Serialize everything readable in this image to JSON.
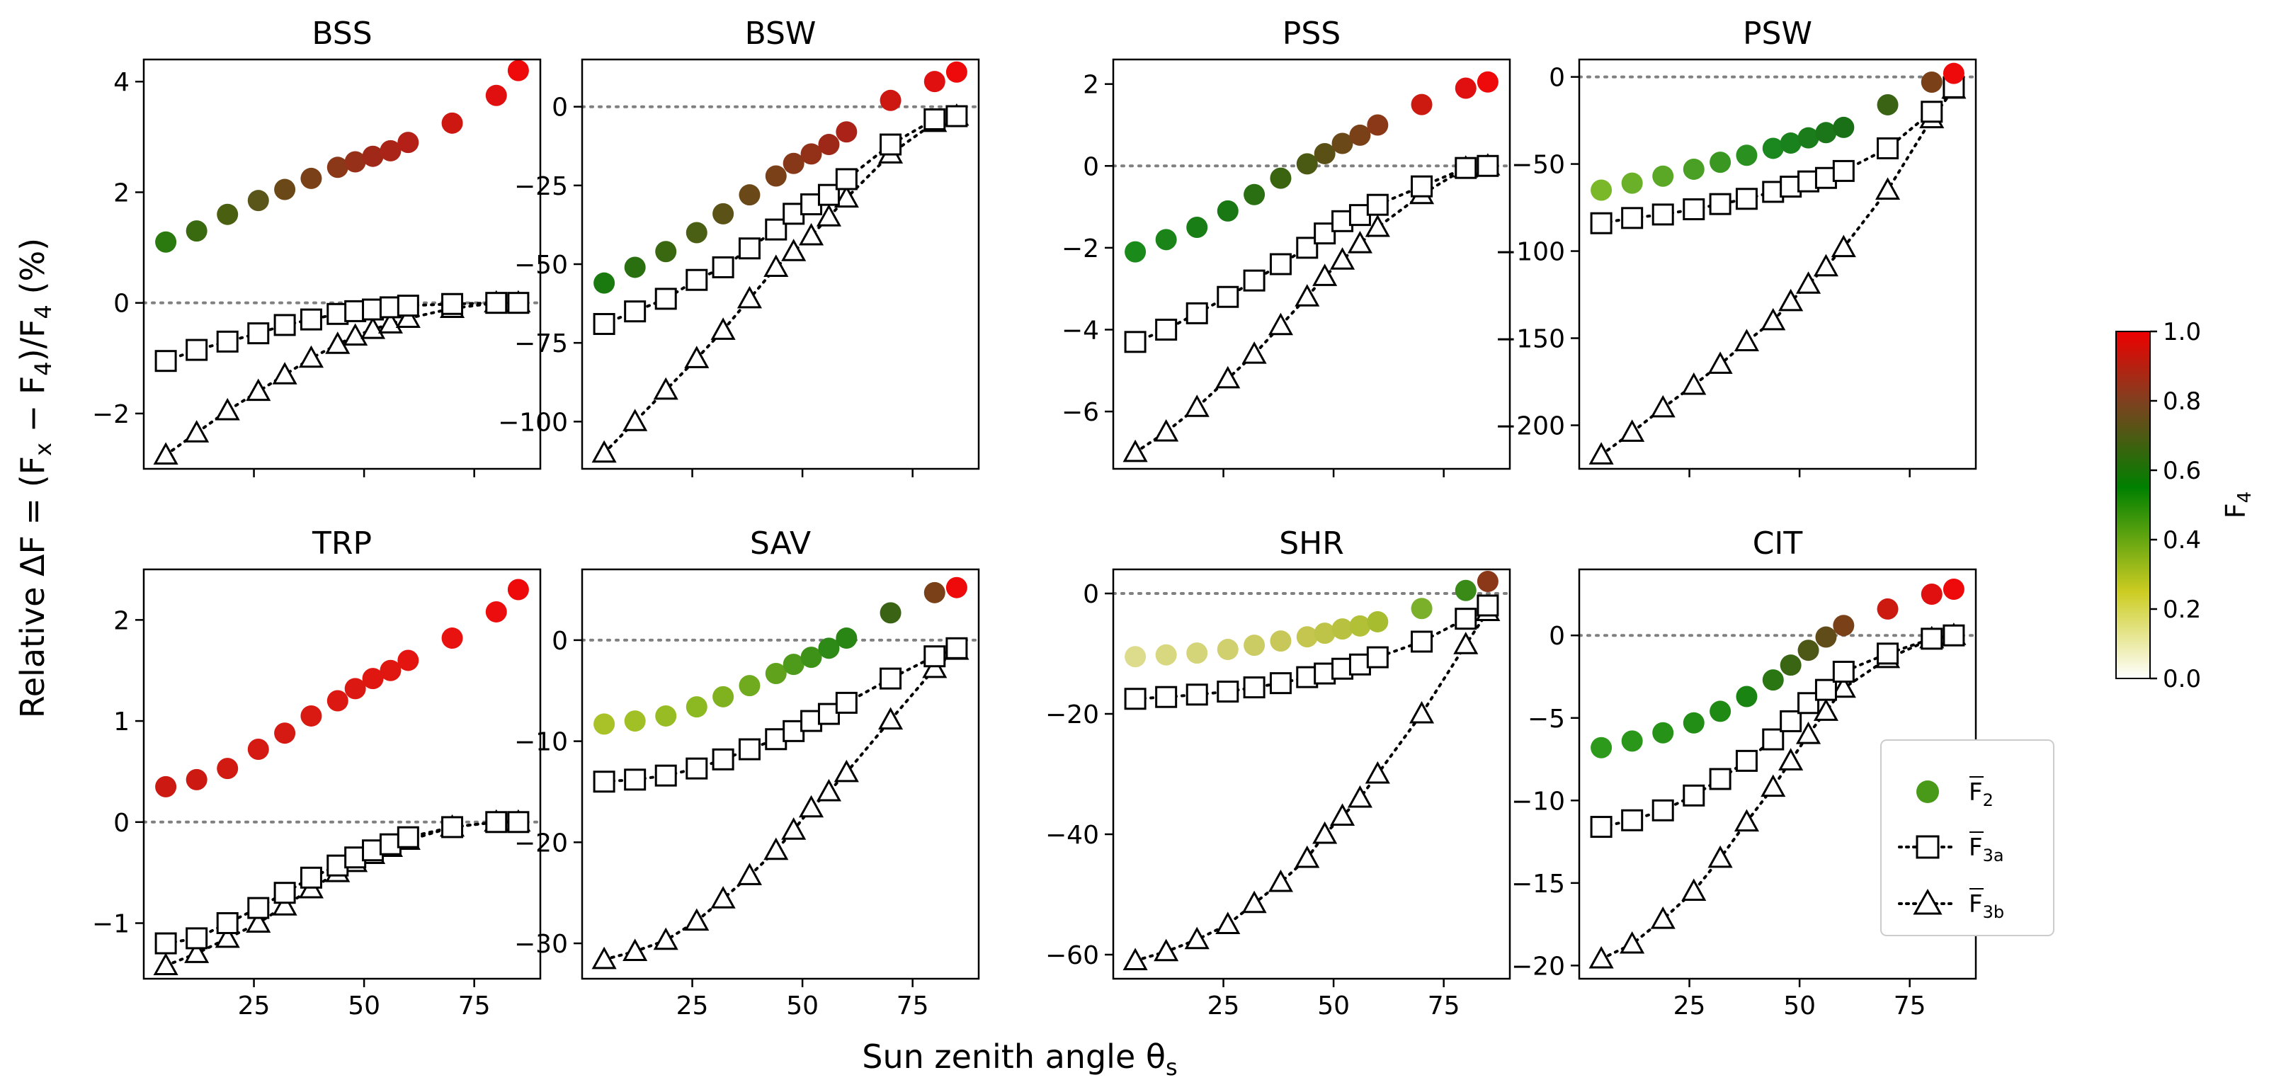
{
  "figure": {
    "xlabel": "Sun zenith angle θ",
    "xlabel_sub": "s",
    "ylabel_prefix": "Relative ΔF = (F",
    "ylabel_sub_x": "x",
    "ylabel_mid": " − F",
    "ylabel_sub_4": "4",
    "ylabel_mid2": ")/F",
    "ylabel_sub_4b": "4",
    "ylabel_suffix": " (%)",
    "colorbar": {
      "label": "F",
      "label_sub": "4",
      "range": [
        0,
        1
      ],
      "ticks": [
        "0.0",
        "0.2",
        "0.4",
        "0.6",
        "0.8",
        "1.0"
      ],
      "colors": [
        "#ffffff",
        "#cccc22",
        "#008000",
        "#804020",
        "#ee0000"
      ]
    },
    "legend": [
      {
        "label": "F",
        "sub": "2",
        "marker": "circle",
        "color": "#4a9a1a"
      },
      {
        "label": "F",
        "sub": "3a",
        "marker": "square",
        "color": "#000000"
      },
      {
        "label": "F",
        "sub": "3b",
        "marker": "triangle",
        "color": "#000000"
      }
    ]
  },
  "chart_data": [
    {
      "title": "BSS",
      "type": "scatter",
      "xlim": [
        0,
        90
      ],
      "ylim": [
        -3.0,
        4.4
      ],
      "xticks": [
        25,
        50,
        75
      ],
      "yticks": [
        -2,
        0,
        2,
        4
      ],
      "ytick_labels": [
        "−2",
        "0",
        "2",
        "4"
      ],
      "x": [
        5,
        12,
        19,
        26,
        32,
        38,
        44,
        48,
        52,
        56,
        60,
        70,
        80,
        85
      ],
      "series": [
        {
          "name": "F2",
          "values": [
            1.1,
            1.3,
            1.6,
            1.85,
            2.05,
            2.25,
            2.45,
            2.55,
            2.65,
            2.75,
            2.9,
            3.25,
            3.75,
            4.2
          ],
          "colors": [
            "#2a7a10",
            "#3a6a10",
            "#4a6010",
            "#5a5518",
            "#6a4818",
            "#7a4018",
            "#8a3818",
            "#963018",
            "#a02818",
            "#aa2418",
            "#b42018",
            "#cc1810",
            "#e01010",
            "#ee0a0a"
          ]
        },
        {
          "name": "F3a",
          "values": [
            -1.05,
            -0.85,
            -0.7,
            -0.55,
            -0.4,
            -0.3,
            -0.2,
            -0.15,
            -0.12,
            -0.08,
            -0.05,
            -0.02,
            0,
            0
          ]
        },
        {
          "name": "F3b",
          "values": [
            -2.75,
            -2.35,
            -1.95,
            -1.6,
            -1.3,
            -1.0,
            -0.75,
            -0.6,
            -0.48,
            -0.38,
            -0.28,
            -0.1,
            0,
            0
          ]
        }
      ]
    },
    {
      "title": "BSW",
      "type": "scatter",
      "xlim": [
        0,
        90
      ],
      "ylim": [
        -115,
        15
      ],
      "xticks": [
        25,
        50,
        75
      ],
      "yticks": [
        -100,
        -75,
        -50,
        -25,
        0
      ],
      "ytick_labels": [
        "−100",
        "−75",
        "−50",
        "−25",
        "0"
      ],
      "x": [
        5,
        12,
        19,
        26,
        32,
        38,
        44,
        48,
        52,
        56,
        60,
        70,
        80,
        85
      ],
      "series": [
        {
          "name": "F2",
          "values": [
            -56,
            -51,
            -46,
            -40,
            -34,
            -28,
            -22,
            -18,
            -15,
            -12,
            -8,
            2,
            8,
            11
          ],
          "colors": [
            "#1a7a10",
            "#2a7010",
            "#3a6810",
            "#4a5e14",
            "#5a5216",
            "#6a4818",
            "#7a4018",
            "#863818",
            "#923018",
            "#9e2818",
            "#aa2218",
            "#cc1810",
            "#e01010",
            "#ee0a0a"
          ]
        },
        {
          "name": "F3a",
          "values": [
            -69,
            -65,
            -61,
            -55,
            -51,
            -45,
            -39,
            -34,
            -31,
            -28,
            -23,
            -12,
            -4,
            -3
          ]
        },
        {
          "name": "F3b",
          "values": [
            -110,
            -100,
            -90,
            -80,
            -71,
            -61,
            -51,
            -46,
            -41,
            -35,
            -29,
            -15,
            -5,
            -3
          ]
        }
      ]
    },
    {
      "title": "PSS",
      "type": "scatter",
      "xlim": [
        0,
        90
      ],
      "ylim": [
        -7.4,
        2.6
      ],
      "xticks": [
        25,
        50,
        75
      ],
      "yticks": [
        -6,
        -4,
        -2,
        0,
        2
      ],
      "ytick_labels": [
        "−6",
        "−4",
        "−2",
        "0",
        "2"
      ],
      "x": [
        5,
        12,
        19,
        26,
        32,
        38,
        44,
        48,
        52,
        56,
        60,
        70,
        80,
        85
      ],
      "series": [
        {
          "name": "F2",
          "values": [
            -2.1,
            -1.8,
            -1.5,
            -1.1,
            -0.7,
            -0.3,
            0.05,
            0.3,
            0.55,
            0.75,
            1.0,
            1.5,
            1.9,
            2.05
          ],
          "colors": [
            "#1a8a1a",
            "#1a8418",
            "#1a7e16",
            "#1a7814",
            "#2a7012",
            "#3a6410",
            "#4a5a12",
            "#5a5016",
            "#6a4818",
            "#7a4018",
            "#8a3818",
            "#cc1a10",
            "#e01010",
            "#ee0a0a"
          ]
        },
        {
          "name": "F3a",
          "values": [
            -4.3,
            -4.0,
            -3.6,
            -3.2,
            -2.8,
            -2.4,
            -2.0,
            -1.65,
            -1.35,
            -1.2,
            -0.95,
            -0.5,
            -0.05,
            0
          ]
        },
        {
          "name": "F3b",
          "values": [
            -7.0,
            -6.5,
            -5.9,
            -5.2,
            -4.6,
            -3.9,
            -3.2,
            -2.7,
            -2.3,
            -1.9,
            -1.5,
            -0.7,
            -0.05,
            0
          ]
        }
      ]
    },
    {
      "title": "PSW",
      "type": "scatter",
      "xlim": [
        0,
        90
      ],
      "ylim": [
        -225,
        10
      ],
      "xticks": [
        25,
        50,
        75
      ],
      "yticks": [
        -200,
        -150,
        -100,
        -50,
        0
      ],
      "ytick_labels": [
        "−200",
        "−150",
        "−100",
        "−50",
        "0"
      ],
      "x": [
        5,
        12,
        19,
        26,
        32,
        38,
        44,
        48,
        52,
        56,
        60,
        70,
        80,
        85
      ],
      "series": [
        {
          "name": "F2",
          "values": [
            -65,
            -61,
            -57,
            -53,
            -49,
            -45,
            -41,
            -38,
            -35,
            -32,
            -29,
            -16,
            -3,
            2
          ],
          "colors": [
            "#7ab82a",
            "#6ab028",
            "#5aa826",
            "#4aa024",
            "#3a9822",
            "#2a9020",
            "#1a881e",
            "#1a821c",
            "#1a7c1a",
            "#1a7618",
            "#1a7016",
            "#3a6414",
            "#7a4018",
            "#ee0a0a"
          ]
        },
        {
          "name": "F3a",
          "values": [
            -84,
            -81,
            -79,
            -76,
            -73,
            -70,
            -66,
            -63,
            -60,
            -58,
            -54,
            -41,
            -20,
            -6
          ]
        },
        {
          "name": "F3b",
          "values": [
            -217,
            -204,
            -190,
            -177,
            -165,
            -152,
            -140,
            -129,
            -119,
            -109,
            -98,
            -65,
            -24,
            -7
          ]
        }
      ]
    },
    {
      "title": "TRP",
      "type": "scatter",
      "xlim": [
        0,
        90
      ],
      "ylim": [
        -1.55,
        2.5
      ],
      "xticks": [
        25,
        50,
        75
      ],
      "yticks": [
        -1,
        0,
        1,
        2
      ],
      "ytick_labels": [
        "−1",
        "0",
        "1",
        "2"
      ],
      "x": [
        5,
        12,
        19,
        26,
        32,
        38,
        44,
        48,
        52,
        56,
        60,
        70,
        80,
        85
      ],
      "series": [
        {
          "name": "F2",
          "values": [
            0.35,
            0.42,
            0.53,
            0.72,
            0.88,
            1.05,
            1.2,
            1.32,
            1.42,
            1.5,
            1.6,
            1.82,
            2.08,
            2.3
          ],
          "colors": [
            "#cc1a12",
            "#cc1a12",
            "#d01a12",
            "#d41a12",
            "#d41a12",
            "#d81a12",
            "#dc1812",
            "#dc1812",
            "#e01610",
            "#e01610",
            "#e41410",
            "#e81210",
            "#ec0e0e",
            "#ee0a0a"
          ]
        },
        {
          "name": "F3a",
          "values": [
            -1.2,
            -1.15,
            -1.0,
            -0.85,
            -0.7,
            -0.55,
            -0.43,
            -0.35,
            -0.28,
            -0.22,
            -0.15,
            -0.05,
            0,
            0
          ]
        },
        {
          "name": "F3b",
          "values": [
            -1.42,
            -1.3,
            -1.15,
            -1.0,
            -0.83,
            -0.66,
            -0.5,
            -0.4,
            -0.32,
            -0.25,
            -0.18,
            -0.05,
            0,
            0
          ]
        }
      ]
    },
    {
      "title": "SAV",
      "type": "scatter",
      "xlim": [
        0,
        90
      ],
      "ylim": [
        -33.5,
        7
      ],
      "xticks": [
        25,
        50,
        75
      ],
      "yticks": [
        -30,
        -20,
        -10,
        0
      ],
      "ytick_labels": [
        "−30",
        "−20",
        "−10",
        "0"
      ],
      "x": [
        5,
        12,
        19,
        26,
        32,
        38,
        44,
        48,
        52,
        56,
        60,
        70,
        80,
        85
      ],
      "series": [
        {
          "name": "F2",
          "values": [
            -8.3,
            -8.0,
            -7.5,
            -6.6,
            -5.6,
            -4.5,
            -3.3,
            -2.4,
            -1.7,
            -0.8,
            0.2,
            2.7,
            4.7,
            5.2
          ],
          "colors": [
            "#a8c228",
            "#a0c026",
            "#98bc24",
            "#8cb822",
            "#80b220",
            "#70aa1e",
            "#60a21c",
            "#4e9a1a",
            "#3e9218",
            "#2e8a16",
            "#2a8614",
            "#3a6414",
            "#7a4018",
            "#ee0a0a"
          ]
        },
        {
          "name": "F3a",
          "values": [
            -14,
            -13.8,
            -13.4,
            -12.7,
            -11.8,
            -10.8,
            -9.8,
            -9.0,
            -8.0,
            -7.3,
            -6.2,
            -3.8,
            -1.6,
            -0.8
          ]
        },
        {
          "name": "F3b",
          "values": [
            -31.6,
            -30.8,
            -29.7,
            -27.8,
            -25.6,
            -23.3,
            -20.8,
            -18.8,
            -16.6,
            -15.0,
            -13.1,
            -7.9,
            -2.8,
            -1.0
          ]
        }
      ]
    },
    {
      "title": "SHR",
      "type": "scatter",
      "xlim": [
        0,
        90
      ],
      "ylim": [
        -64,
        4
      ],
      "xticks": [
        25,
        50,
        75
      ],
      "yticks": [
        -60,
        -40,
        -20,
        0
      ],
      "ytick_labels": [
        "−60",
        "−40",
        "−20",
        "0"
      ],
      "x": [
        5,
        12,
        19,
        26,
        32,
        38,
        44,
        48,
        52,
        56,
        60,
        70,
        80,
        85
      ],
      "series": [
        {
          "name": "F2",
          "values": [
            -10.5,
            -10.2,
            -9.9,
            -9.3,
            -8.6,
            -7.9,
            -7.2,
            -6.6,
            -5.9,
            -5.4,
            -4.7,
            -2.5,
            0.5,
            2.0
          ],
          "colors": [
            "#dcdc8c",
            "#d8d880",
            "#d4d478",
            "#d0d06e",
            "#cccc64",
            "#c8c85a",
            "#c4c650",
            "#bec448",
            "#b8c240",
            "#b2c038",
            "#a8bc30",
            "#7ab02a",
            "#3a8a18",
            "#8a3818"
          ]
        },
        {
          "name": "F3a",
          "values": [
            -17.5,
            -17.2,
            -16.8,
            -16.3,
            -15.6,
            -14.9,
            -13.9,
            -13.3,
            -12.5,
            -11.8,
            -10.6,
            -8.0,
            -4.2,
            -2.0
          ]
        },
        {
          "name": "F3b",
          "values": [
            -61,
            -59.5,
            -57.5,
            -55,
            -51.5,
            -48,
            -44,
            -40,
            -37,
            -34,
            -30,
            -20,
            -8.5,
            -3.0
          ]
        }
      ]
    },
    {
      "title": "CIT",
      "type": "scatter",
      "xlim": [
        0,
        90
      ],
      "ylim": [
        -20.8,
        4
      ],
      "xticks": [
        25,
        50,
        75
      ],
      "yticks": [
        -20,
        -15,
        -10,
        -5,
        0
      ],
      "ytick_labels": [
        "−20",
        "−15",
        "−10",
        "−5",
        "0"
      ],
      "x": [
        5,
        12,
        19,
        26,
        32,
        38,
        44,
        48,
        52,
        56,
        60,
        70,
        80,
        85
      ],
      "series": [
        {
          "name": "F2",
          "values": [
            -6.8,
            -6.4,
            -5.9,
            -5.3,
            -4.6,
            -3.7,
            -2.7,
            -1.8,
            -0.9,
            -0.1,
            0.6,
            1.6,
            2.5,
            2.8
          ],
          "colors": [
            "#2e9a1c",
            "#2a961a",
            "#269218",
            "#228e16",
            "#1e8a14",
            "#1a8412",
            "#2a7612",
            "#3a6614",
            "#4e5816",
            "#604c18",
            "#7a4018",
            "#cc1a10",
            "#e01010",
            "#ee0a0a"
          ]
        },
        {
          "name": "F3a",
          "values": [
            -11.6,
            -11.2,
            -10.6,
            -9.7,
            -8.7,
            -7.6,
            -6.3,
            -5.2,
            -4.1,
            -3.3,
            -2.2,
            -1.1,
            -0.2,
            0
          ]
        },
        {
          "name": "F3b",
          "values": [
            -19.6,
            -18.7,
            -17.2,
            -15.5,
            -13.5,
            -11.3,
            -9.2,
            -7.6,
            -6.0,
            -4.6,
            -3.2,
            -1.4,
            -0.2,
            0
          ]
        }
      ]
    }
  ]
}
